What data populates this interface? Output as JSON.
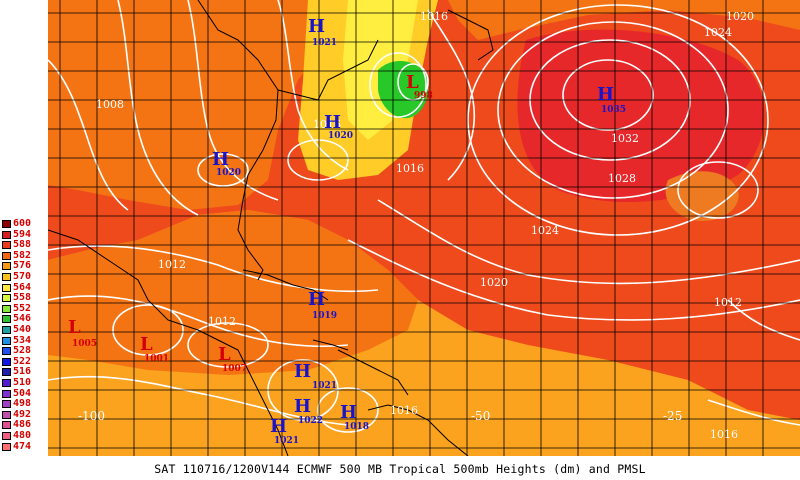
{
  "caption": "SAT 110716/1200V144  ECMWF  500 MB Tropical 500mb Heights (dm) and PMSL",
  "colorbar": {
    "labels": [
      "600",
      "594",
      "588",
      "582",
      "576",
      "570",
      "564",
      "558",
      "552",
      "546",
      "540",
      "534",
      "528",
      "522",
      "516",
      "510",
      "504",
      "498",
      "492",
      "486",
      "480",
      "474"
    ],
    "colors": [
      "#8b0000",
      "#d42020",
      "#ee3a1c",
      "#f46a10",
      "#fb9a14",
      "#ffc21e",
      "#ffe840",
      "#d8f840",
      "#88e838",
      "#30c030",
      "#20a0a0",
      "#2090e0",
      "#2050f0",
      "#1018e8",
      "#2020b0",
      "#5020d0",
      "#8030d0",
      "#a040c0",
      "#c050b0",
      "#e05090",
      "#f06080",
      "#ff7070"
    ]
  },
  "highs": [
    {
      "symbol": "H",
      "value": "1021"
    },
    {
      "symbol": "H",
      "value": "1020"
    },
    {
      "symbol": "H",
      "value": "1020"
    },
    {
      "symbol": "H",
      "value": "1035"
    },
    {
      "symbol": "H",
      "value": "1019"
    },
    {
      "symbol": "H",
      "value": "1021"
    },
    {
      "symbol": "H",
      "value": "1022"
    },
    {
      "symbol": "H",
      "value": "1018"
    },
    {
      "symbol": "H",
      "value": "1021"
    }
  ],
  "lows": [
    {
      "symbol": "L",
      "value": "998"
    },
    {
      "symbol": "L",
      "value": "1005"
    },
    {
      "symbol": "L",
      "value": "1001"
    },
    {
      "symbol": "L",
      "value": "1007"
    }
  ],
  "isobar_labels": [
    "1008",
    "1016",
    "1016",
    "1016",
    "1012",
    "1020",
    "1024",
    "1028",
    "1032",
    "1020",
    "1024",
    "1012",
    "1016",
    "1016",
    "1012"
  ],
  "longitude_labels": [
    "-100",
    "-50",
    "-25"
  ],
  "colors": {
    "height_588": "#ee4a1c",
    "height_582": "#f47414",
    "height_576": "#fba21e",
    "height_570": "#ffcc28",
    "height_564": "#ffee40",
    "height_594": "#e6282a",
    "high_label": "#1a14c8",
    "low_label": "#d40000",
    "isobar": "#ffffff",
    "grid": "#000000"
  }
}
